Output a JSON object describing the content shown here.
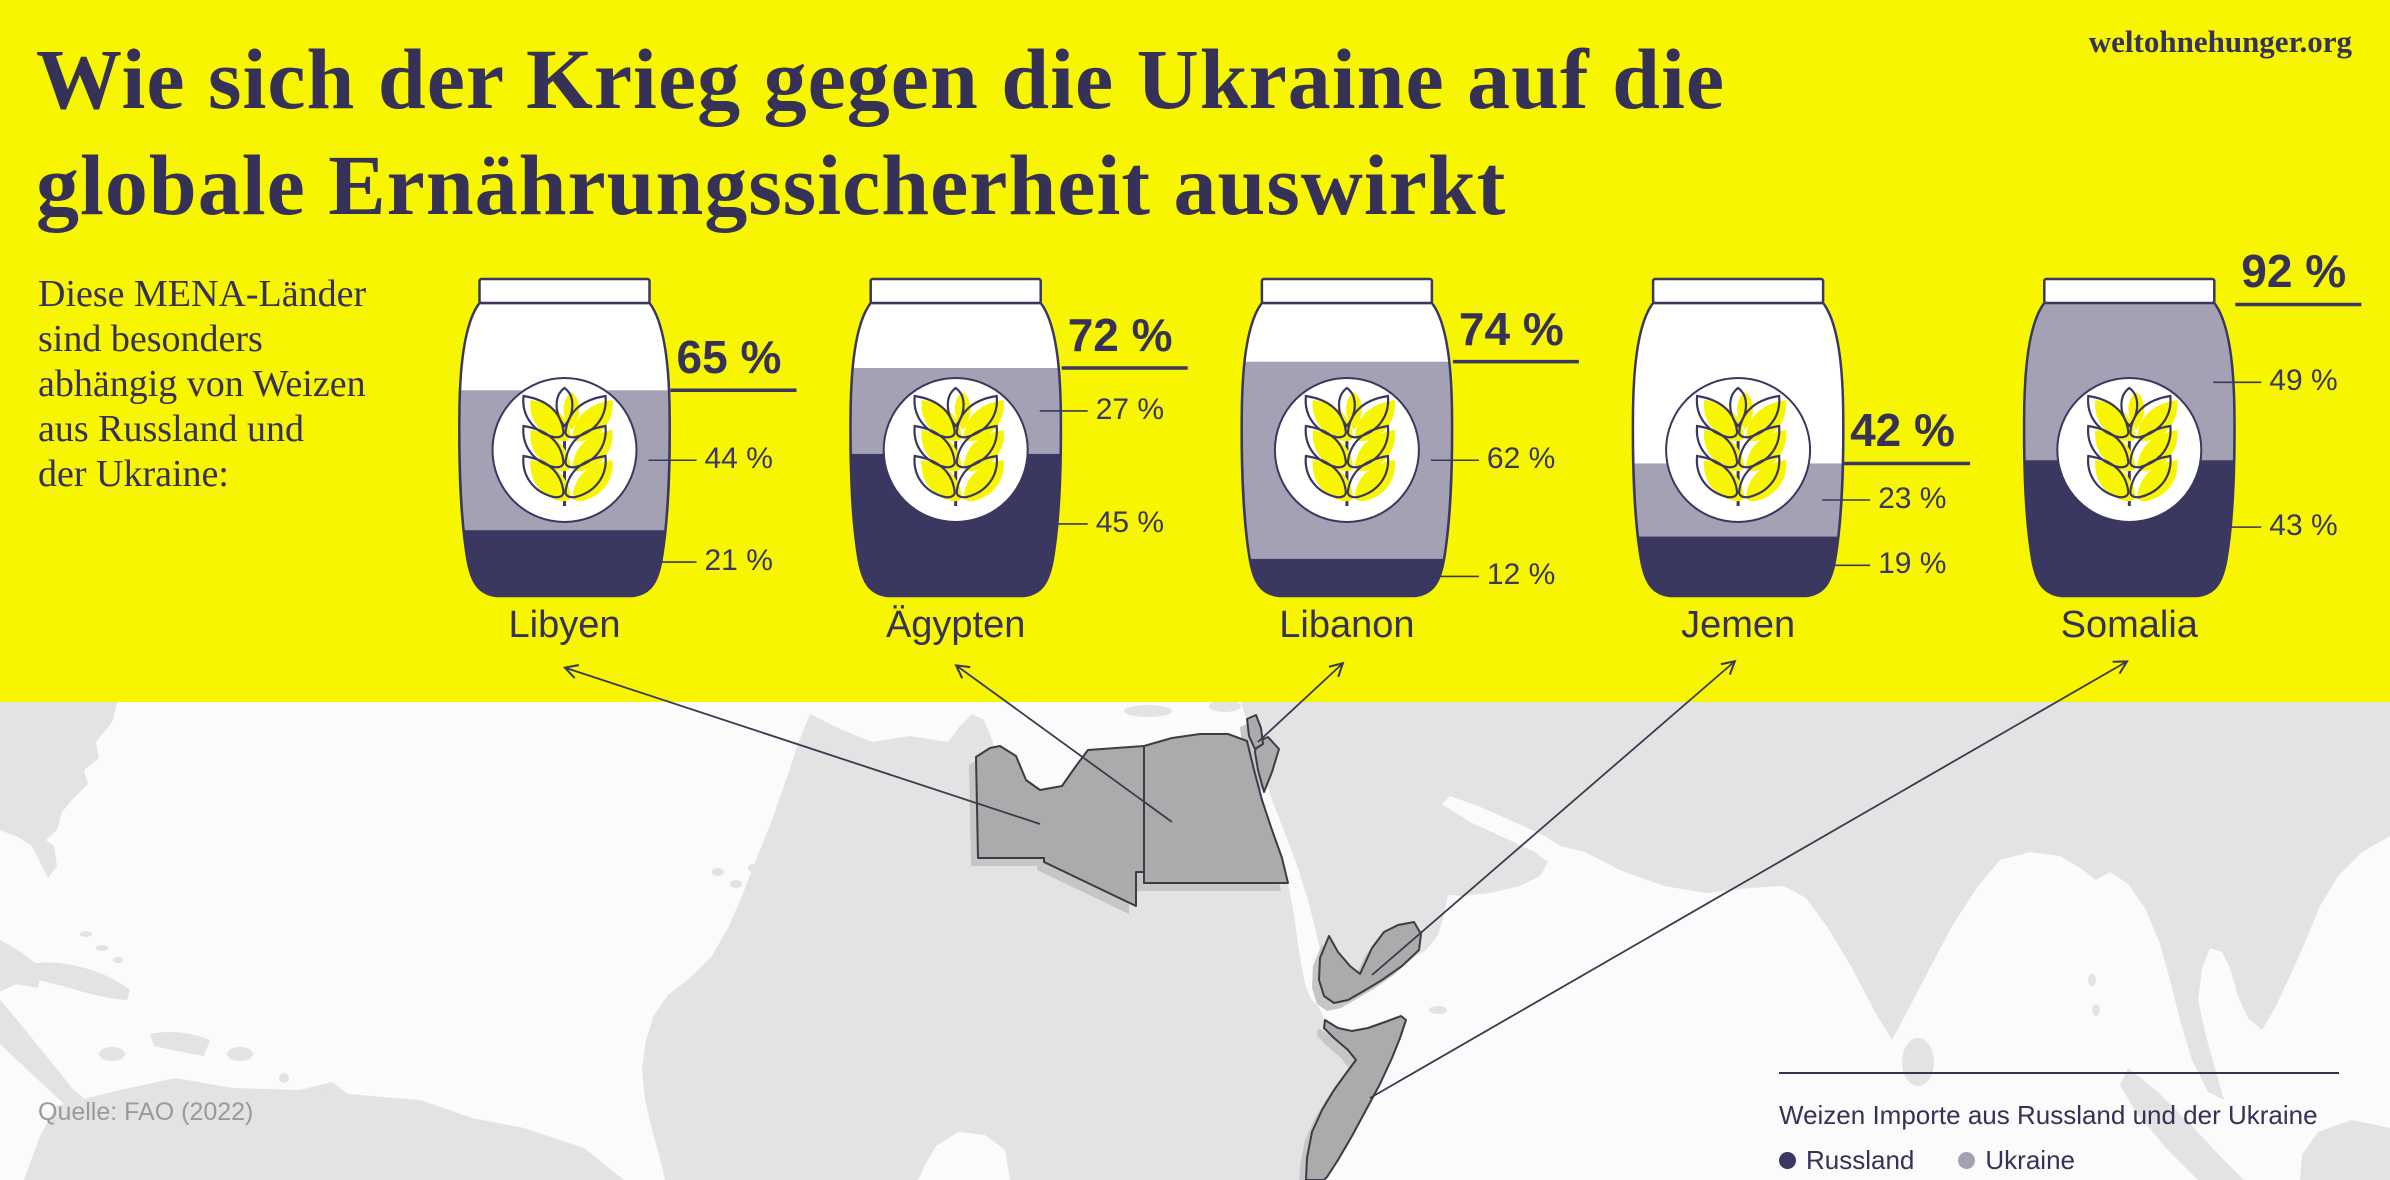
{
  "header": {
    "title_line1": "Wie sich der Krieg gegen die Ukraine auf die",
    "title_line2": "globale Ernährungssicherheit auswirkt",
    "site": "weltohnehunger.org"
  },
  "intro": "Diese MENA-Länder\nsind besonders\nabhängig von Weizen\naus Russland und\nder Ukraine:",
  "jars": [
    {
      "country": "Libyen",
      "total": 65,
      "ukraine": 44,
      "russland": 21,
      "total_label": "65 %",
      "ukraine_label": "44 %",
      "russland_label": "21 %"
    },
    {
      "country": "Ägypten",
      "total": 72,
      "ukraine": 27,
      "russland": 45,
      "total_label": "72 %",
      "ukraine_label": "27 %",
      "russland_label": "45 %"
    },
    {
      "country": "Libanon",
      "total": 74,
      "ukraine": 62,
      "russland": 12,
      "total_label": "74 %",
      "ukraine_label": "62 %",
      "russland_label": "12 %"
    },
    {
      "country": "Jemen",
      "total": 42,
      "ukraine": 23,
      "russland": 19,
      "total_label": "42 %",
      "ukraine_label": "23 %",
      "russland_label": "19 %"
    },
    {
      "country": "Somalia",
      "total": 92,
      "ukraine": 49,
      "russland": 43,
      "total_label": "92 %",
      "ukraine_label": "49 %",
      "russland_label": "43 %"
    }
  ],
  "legend": {
    "title": "Weizen Importe aus Russland und der Ukraine",
    "items": [
      {
        "label": "Russland",
        "color": "#3a3761"
      },
      {
        "label": "Ukraine",
        "color": "#a5a1b5"
      }
    ]
  },
  "source": "Quelle: FAO (2022)",
  "map": {
    "highlighted_countries": [
      "Libyen",
      "Ägypten",
      "Libanon",
      "Jemen",
      "Somalia"
    ]
  },
  "colors": {
    "yellow": "#f7f500",
    "navy": "#3a3761",
    "lavender": "#a5a1b5",
    "text": "#353157",
    "land": "#e3e3e3",
    "highlight": "#ababab",
    "shadow": "#c6c6c6",
    "sea": "#fbfbfb",
    "wheat_yellow": "#f7f500"
  },
  "chart_data": {
    "type": "bar",
    "title": "Wie sich der Krieg gegen die Ukraine auf die globale Ernährungssicherheit auswirkt",
    "subtitle": "Diese MENA-Länder sind besonders abhängig von Weizen aus Russland und der Ukraine",
    "categories": [
      "Libyen",
      "Ägypten",
      "Libanon",
      "Jemen",
      "Somalia"
    ],
    "series": [
      {
        "name": "Russland",
        "values": [
          21,
          45,
          12,
          19,
          43
        ]
      },
      {
        "name": "Ukraine",
        "values": [
          44,
          27,
          62,
          23,
          49
        ]
      }
    ],
    "totals": [
      65,
      72,
      74,
      42,
      92
    ],
    "unit": "%",
    "legend_title": "Weizen Importe aus Russland und der Ukraine",
    "source": "Quelle: FAO (2022)"
  }
}
